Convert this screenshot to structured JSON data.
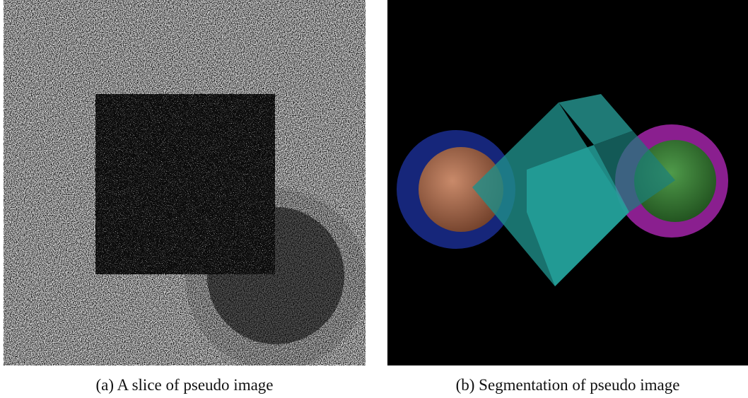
{
  "figures": [
    {
      "caption": "(a) A slice of pseudo image"
    },
    {
      "caption": "(b) Segmentation of pseudo image"
    }
  ]
}
